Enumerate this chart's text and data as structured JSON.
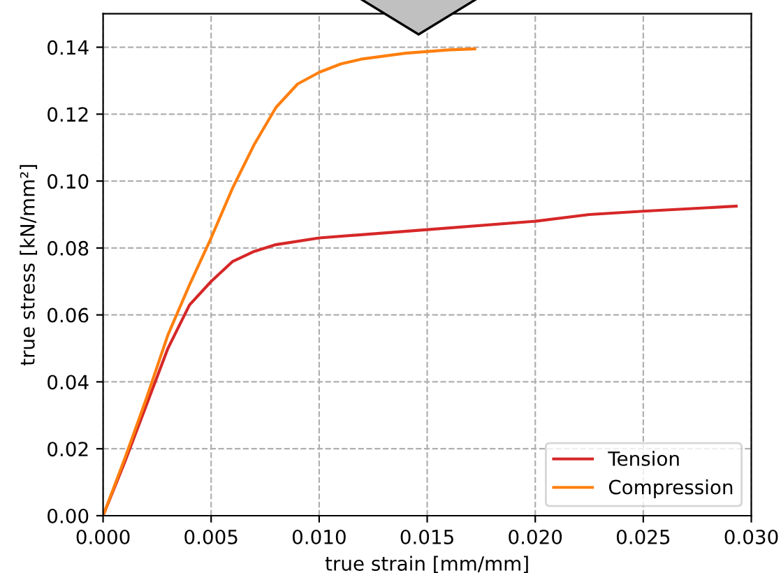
{
  "chart_data": {
    "type": "line",
    "xlabel": "true strain [mm/mm]",
    "ylabel": "true stress [kN/mm²]",
    "xlim": [
      0,
      0.03
    ],
    "xticks": [
      {
        "value": 0,
        "label": "0.000"
      },
      {
        "value": 0.005,
        "label": "0.005"
      },
      {
        "value": 0.01,
        "label": "0.010"
      },
      {
        "value": 0.015,
        "label": "0.015"
      },
      {
        "value": 0.02,
        "label": "0.020"
      },
      {
        "value": 0.025,
        "label": "0.025"
      },
      {
        "value": 0.03,
        "label": "0.030"
      }
    ],
    "ylim": [
      0,
      0.15
    ],
    "yticks": [
      {
        "value": 0,
        "label": "0.00"
      },
      {
        "value": 0.02,
        "label": "0.02"
      },
      {
        "value": 0.04,
        "label": "0.04"
      },
      {
        "value": 0.06,
        "label": "0.06"
      },
      {
        "value": 0.08,
        "label": "0.08"
      },
      {
        "value": 0.1,
        "label": "0.10"
      },
      {
        "value": 0.12,
        "label": "0.12"
      },
      {
        "value": 0.14,
        "label": "0.14"
      }
    ],
    "grid": true,
    "legend": "lower right",
    "series": [
      {
        "name": "Tension",
        "color": "#d62728",
        "x": [
          0,
          0.001,
          0.002,
          0.003,
          0.004,
          0.005,
          0.006,
          0.007,
          0.008,
          0.01,
          0.015,
          0.02,
          0.0225,
          0.025,
          0.0293
        ],
        "values": [
          0,
          0.016,
          0.033,
          0.05,
          0.063,
          0.07,
          0.076,
          0.079,
          0.081,
          0.083,
          0.0855,
          0.088,
          0.09,
          0.091,
          0.0925
        ]
      },
      {
        "name": "Compression",
        "color": "#ff7f0e",
        "x": [
          0,
          0.001,
          0.002,
          0.003,
          0.004,
          0.005,
          0.006,
          0.007,
          0.008,
          0.009,
          0.01,
          0.011,
          0.012,
          0.014,
          0.016,
          0.0172
        ],
        "values": [
          0,
          0.017,
          0.035,
          0.054,
          0.069,
          0.083,
          0.098,
          0.111,
          0.122,
          0.129,
          0.1325,
          0.135,
          0.1365,
          0.1382,
          0.1392,
          0.1395
        ]
      }
    ]
  }
}
